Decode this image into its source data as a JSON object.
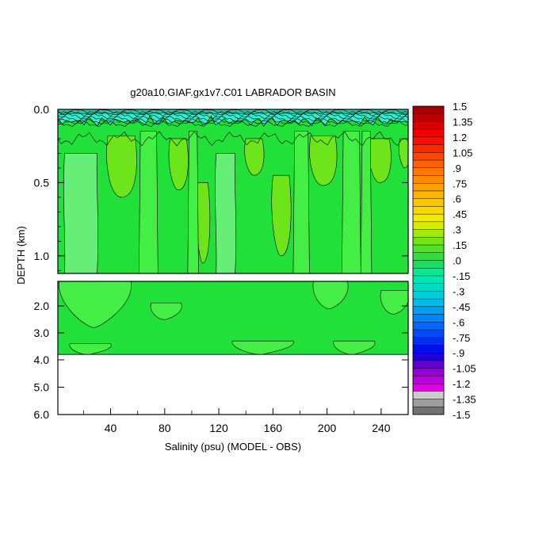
{
  "chart_data": {
    "type": "heatmap",
    "title": "g20a10.GIAF.gx1v7.C01 LABRADOR BASIN",
    "xlabel": "Salinity (psu) (MODEL - OBS)",
    "ylabel": "DEPTH (km)",
    "x_ticks": [
      "40",
      "80",
      "120",
      "160",
      "200",
      "240"
    ],
    "x_tick_values": [
      40,
      80,
      120,
      160,
      200,
      240
    ],
    "xlim": [
      1,
      260
    ],
    "upper_panel": {
      "ylim": [
        0,
        1.12
      ],
      "y_ticks": [
        "0.0",
        "0.5",
        "1.0"
      ],
      "y_tick_values": [
        0.0,
        0.5,
        1.0
      ]
    },
    "lower_panel": {
      "ylim": [
        1.2,
        6.0
      ],
      "y_ticks": [
        "2.0",
        "3.0",
        "4.0",
        "5.0",
        "6.0"
      ],
      "y_tick_values": [
        2.0,
        3.0,
        4.0,
        5.0,
        6.0
      ],
      "data_max_depth": 3.8
    },
    "colorbar": {
      "min": -1.5,
      "max": 1.5,
      "step": 0.075,
      "labels": [
        "1.5",
        "1.35",
        "1.2",
        "1.05",
        ".9",
        ".75",
        ".6",
        ".45",
        ".3",
        ".15",
        ".0",
        "-.15",
        "-.3",
        "-.45",
        "-.6",
        "-.75",
        "-.9",
        "-1.05",
        "-1.2",
        "-1.35",
        "-1.5"
      ],
      "label_values": [
        1.5,
        1.35,
        1.2,
        1.05,
        0.9,
        0.75,
        0.6,
        0.45,
        0.3,
        0.15,
        0.0,
        -0.15,
        -0.3,
        -0.45,
        -0.6,
        -0.75,
        -0.9,
        -1.05,
        -1.2,
        -1.35,
        -1.5
      ]
    },
    "colors": {
      "field_main": "#22e03a",
      "field_light": "#44ee44",
      "field_pale": "#66ee77",
      "field_yellowgreen": "#6ee51a",
      "surface_cyan": "#33eecc",
      "surface_teal": "#22ccaa"
    }
  }
}
